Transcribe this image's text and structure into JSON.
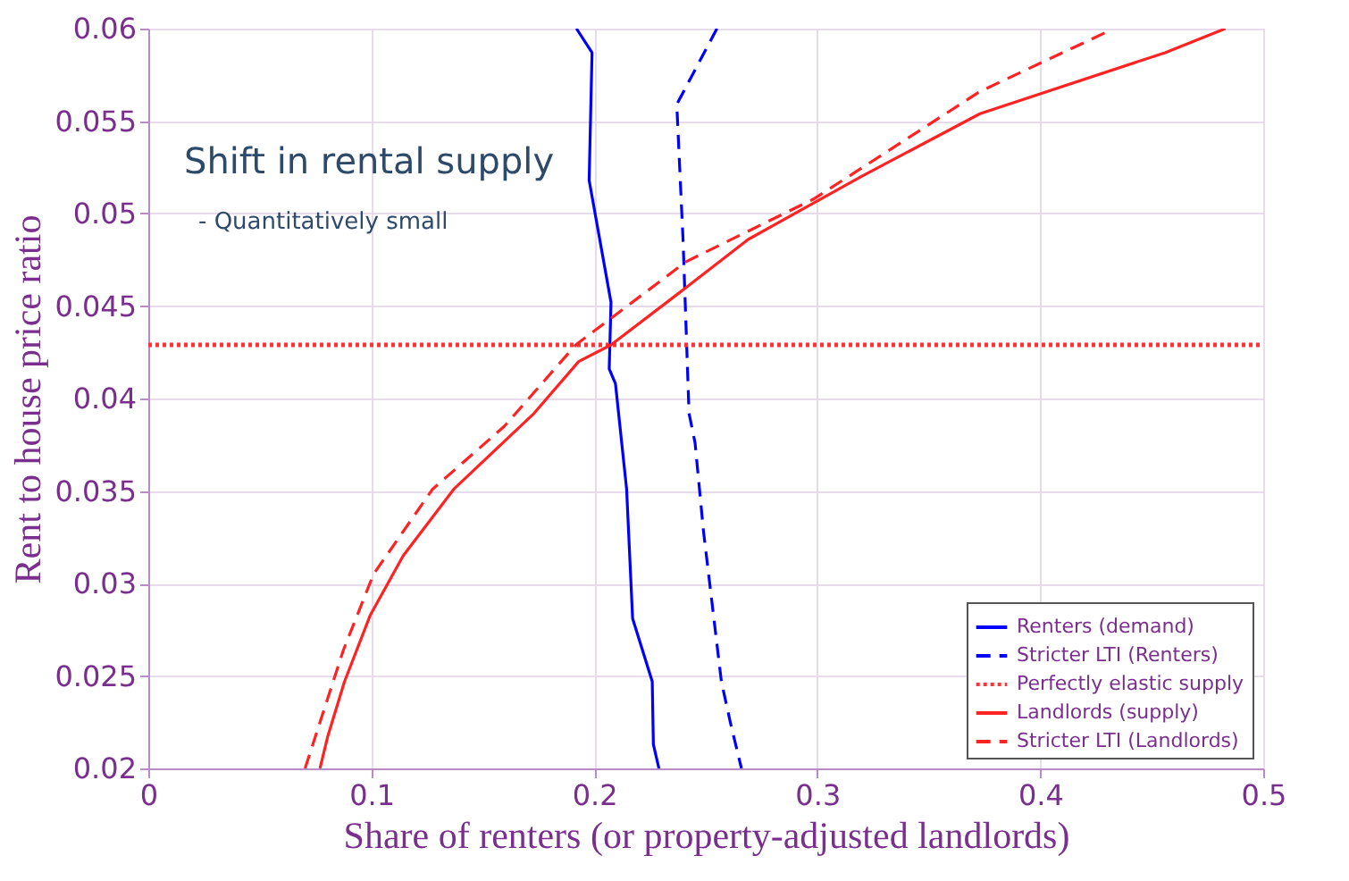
{
  "chart_data": {
    "type": "line",
    "xlabel": "Share of renters (or property-adjusted landlords)",
    "ylabel": "Rent to house price ratio",
    "xlim": [
      0,
      0.5
    ],
    "ylim": [
      0.02,
      0.06
    ],
    "xticks": [
      0,
      0.1,
      0.2,
      0.3,
      0.4,
      0.5
    ],
    "yticks": [
      0.02,
      0.025,
      0.03,
      0.035,
      0.04,
      0.045,
      0.05,
      0.055,
      0.06
    ],
    "grid": true,
    "legend": "bottom right",
    "annotations": [
      "Shift in rental supply",
      "- Quantitatively small"
    ],
    "series": [
      {
        "name": "Renters (demand)",
        "color": "#0000ff",
        "line_style": "solid",
        "x": [
          0.192,
          0.199,
          0.1977,
          0.2075,
          0.2067,
          0.2095,
          0.2145,
          0.2172,
          0.226,
          0.2265,
          0.229
        ],
        "values": [
          0.06,
          0.0587,
          0.0518,
          0.0452,
          0.0416,
          0.0408,
          0.0351,
          0.0281,
          0.0247,
          0.0213,
          0.02
        ]
      },
      {
        "name": "Stricter LTI (Renters)",
        "color": "#0000ff",
        "line_style": "dashed",
        "x": [
          0.255,
          0.237,
          0.2398,
          0.2425,
          0.2452,
          0.249,
          0.257,
          0.261,
          0.266
        ],
        "values": [
          0.06,
          0.0559,
          0.0486,
          0.0392,
          0.0376,
          0.0328,
          0.0247,
          0.0225,
          0.02
        ]
      },
      {
        "name": "Perfectly elastic supply",
        "color": "#ff3333",
        "line_style": "dotted",
        "x": [
          0,
          0.5
        ],
        "values": [
          0.0429,
          0.0429
        ]
      },
      {
        "name": "Landlords (supply)",
        "color": "#ff2222",
        "line_style": "solid",
        "x": [
          0.077,
          0.0804,
          0.088,
          0.0996,
          0.1143,
          0.137,
          0.173,
          0.193,
          0.2075,
          0.2412,
          0.269,
          0.3197,
          0.373,
          0.456,
          0.483
        ],
        "values": [
          0.02,
          0.0217,
          0.0247,
          0.0283,
          0.0315,
          0.0351,
          0.0392,
          0.042,
          0.0429,
          0.046,
          0.0486,
          0.052,
          0.0554,
          0.0587,
          0.06
        ]
      },
      {
        "name": "Stricter LTI (Landlords)",
        "color": "#ff2222",
        "line_style": "dashed",
        "x": [
          0.0703,
          0.0875,
          0.101,
          0.1275,
          0.1597,
          0.1917,
          0.2412,
          0.2986,
          0.373,
          0.4295
        ],
        "values": [
          0.02,
          0.0264,
          0.0305,
          0.0351,
          0.0385,
          0.0429,
          0.0474,
          0.0508,
          0.0566,
          0.0598
        ]
      }
    ]
  }
}
